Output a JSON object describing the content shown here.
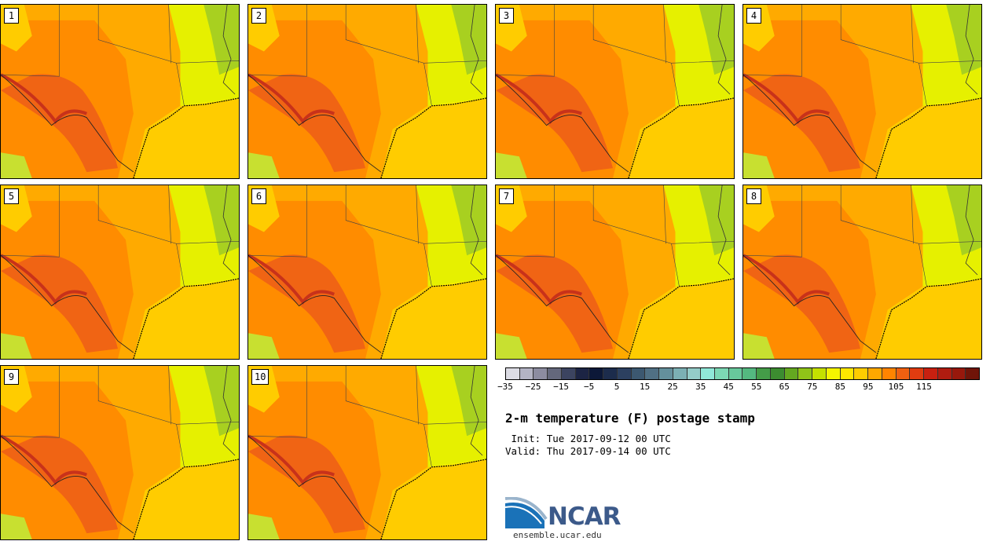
{
  "panels": [
    {
      "label": "1"
    },
    {
      "label": "2"
    },
    {
      "label": "3"
    },
    {
      "label": "4"
    },
    {
      "label": "5"
    },
    {
      "label": "6"
    },
    {
      "label": "7"
    },
    {
      "label": "8"
    },
    {
      "label": "9"
    },
    {
      "label": "10"
    }
  ],
  "colorbar": {
    "colors": [
      "#dcdce4",
      "#b4b4c4",
      "#8c8ca0",
      "#64687c",
      "#3c4460",
      "#1c2444",
      "#0c1838",
      "#1c2c4c",
      "#2c4060",
      "#3c5870",
      "#507084",
      "#64909c",
      "#7cb0b4",
      "#94ccc8",
      "#90e8d8",
      "#7cd8b4",
      "#68c89c",
      "#54b880",
      "#449c48",
      "#3c8c30",
      "#64a820",
      "#90c418",
      "#c4e000",
      "#f4f400",
      "#ffe800",
      "#ffcc00",
      "#ffa800",
      "#ff8400",
      "#f06010",
      "#e03c10",
      "#c82010",
      "#b01c10",
      "#98180c",
      "#701408"
    ],
    "ticks": [
      "−35",
      "−25",
      "−15",
      "−5",
      "5",
      "15",
      "25",
      "35",
      "45",
      "55",
      "65",
      "75",
      "85",
      "95",
      "105",
      "115"
    ]
  },
  "title": "2-m temperature (F) postage stamp",
  "init_label": " Init:",
  "init_value": "Tue 2017-09-12 00 UTC",
  "valid_label": "Valid:",
  "valid_value": "Thu 2017-09-14 00 UTC",
  "logo": {
    "text": "NCAR",
    "site": "ensemble.ucar.edu"
  }
}
